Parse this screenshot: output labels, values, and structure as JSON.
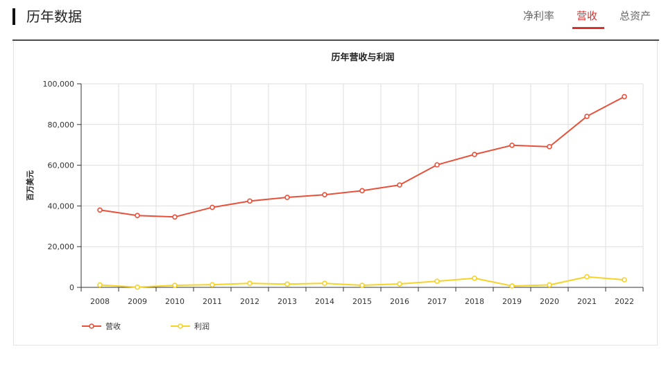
{
  "header": {
    "title": "历年数据",
    "tabs": [
      {
        "label": "净利率",
        "active": false
      },
      {
        "label": "营收",
        "active": true
      },
      {
        "label": "总资产",
        "active": false
      }
    ]
  },
  "chart_data": {
    "type": "line",
    "title": "历年营收与利润",
    "ylabel": "百万美元",
    "xlabel": "",
    "ylim": [
      0,
      100000
    ],
    "yticks": [
      "0",
      "20,000",
      "40,000",
      "60,000",
      "80,000",
      "100,000"
    ],
    "categories": [
      "2008",
      "2009",
      "2010",
      "2011",
      "2012",
      "2013",
      "2014",
      "2015",
      "2016",
      "2017",
      "2018",
      "2019",
      "2020",
      "2021",
      "2022"
    ],
    "series": [
      {
        "name": "营收",
        "color": "#e8503a",
        "values": [
          38000,
          35300,
          34600,
          39300,
          42400,
          44200,
          45500,
          47500,
          50300,
          60200,
          65300,
          69800,
          69100,
          84000,
          93700
        ]
      },
      {
        "name": "利润",
        "color": "#f5d327",
        "values": [
          1200,
          100,
          1000,
          1300,
          2000,
          1600,
          2000,
          1000,
          1700,
          3000,
          4500,
          700,
          1200,
          5200,
          3700
        ]
      }
    ],
    "grid": true,
    "legend": "bottom-left"
  }
}
